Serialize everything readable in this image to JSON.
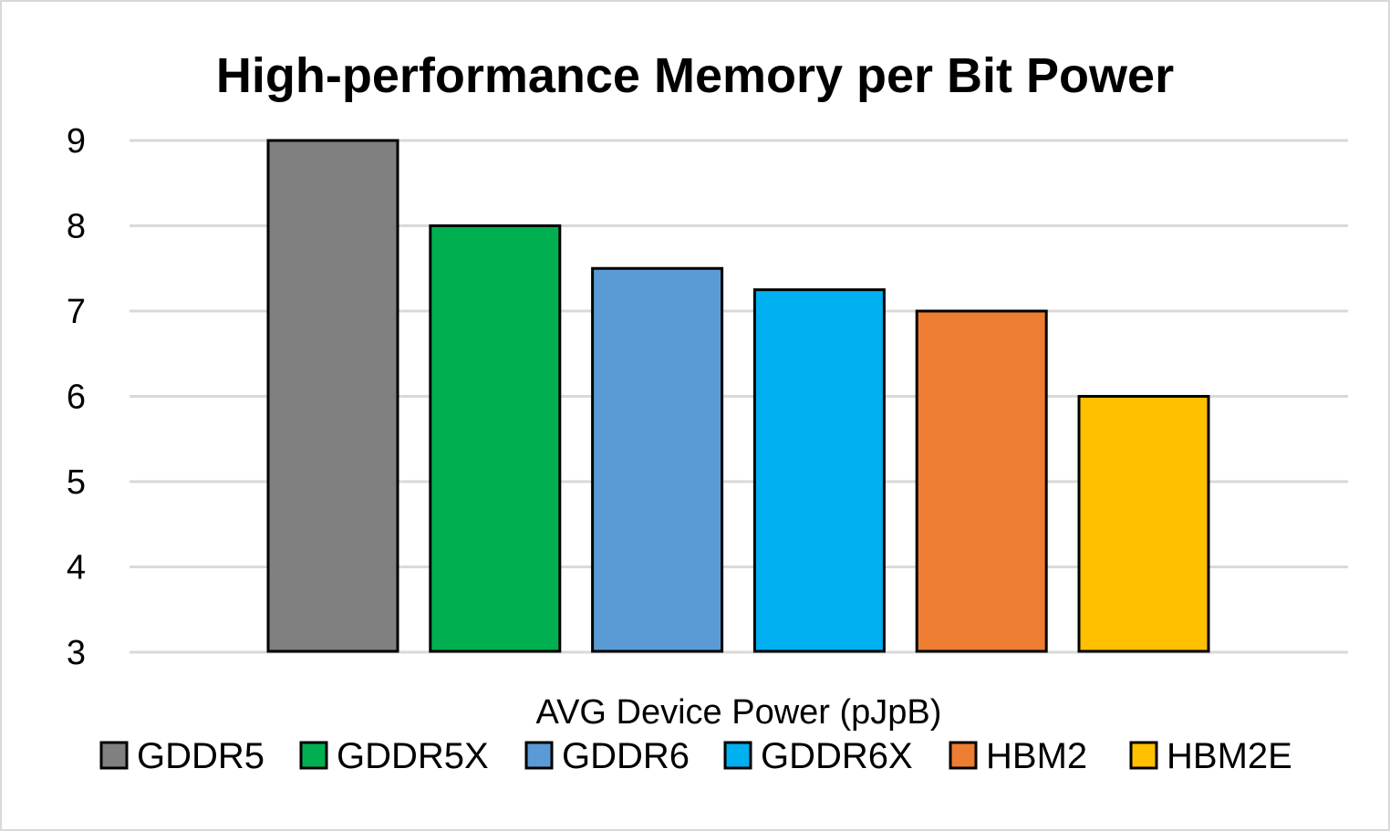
{
  "chart_data": {
    "type": "bar",
    "title": "High-performance Memory per Bit Power",
    "xlabel": "AVG Device Power (pJpB)",
    "ylabel": "",
    "ylim": [
      3,
      9
    ],
    "yticks": [
      "3",
      "4",
      "5",
      "6",
      "7",
      "8",
      "9"
    ],
    "grid": true,
    "legend_position": "bottom",
    "series": [
      {
        "name": "GDDR5",
        "value": 9,
        "color": "#808080"
      },
      {
        "name": "GDDR5X",
        "value": 8,
        "color": "#00b050"
      },
      {
        "name": "GDDR6",
        "value": 7.5,
        "color": "#5b9bd5"
      },
      {
        "name": "GDDR6X",
        "value": 7.25,
        "color": "#00b0f0"
      },
      {
        "name": "HBM2",
        "value": 7,
        "color": "#ed7d31"
      },
      {
        "name": "HBM2E",
        "value": 6,
        "color": "#ffc000"
      }
    ]
  }
}
